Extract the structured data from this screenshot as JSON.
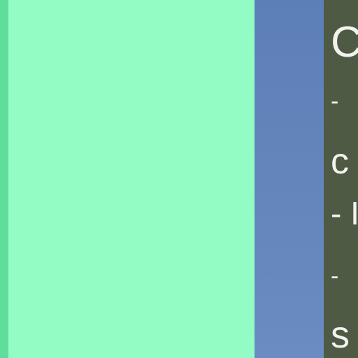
{
  "notes": {
    "lines": [
      "C",
      "-",
      "c",
      "- I",
      "-",
      "s"
    ]
  }
}
